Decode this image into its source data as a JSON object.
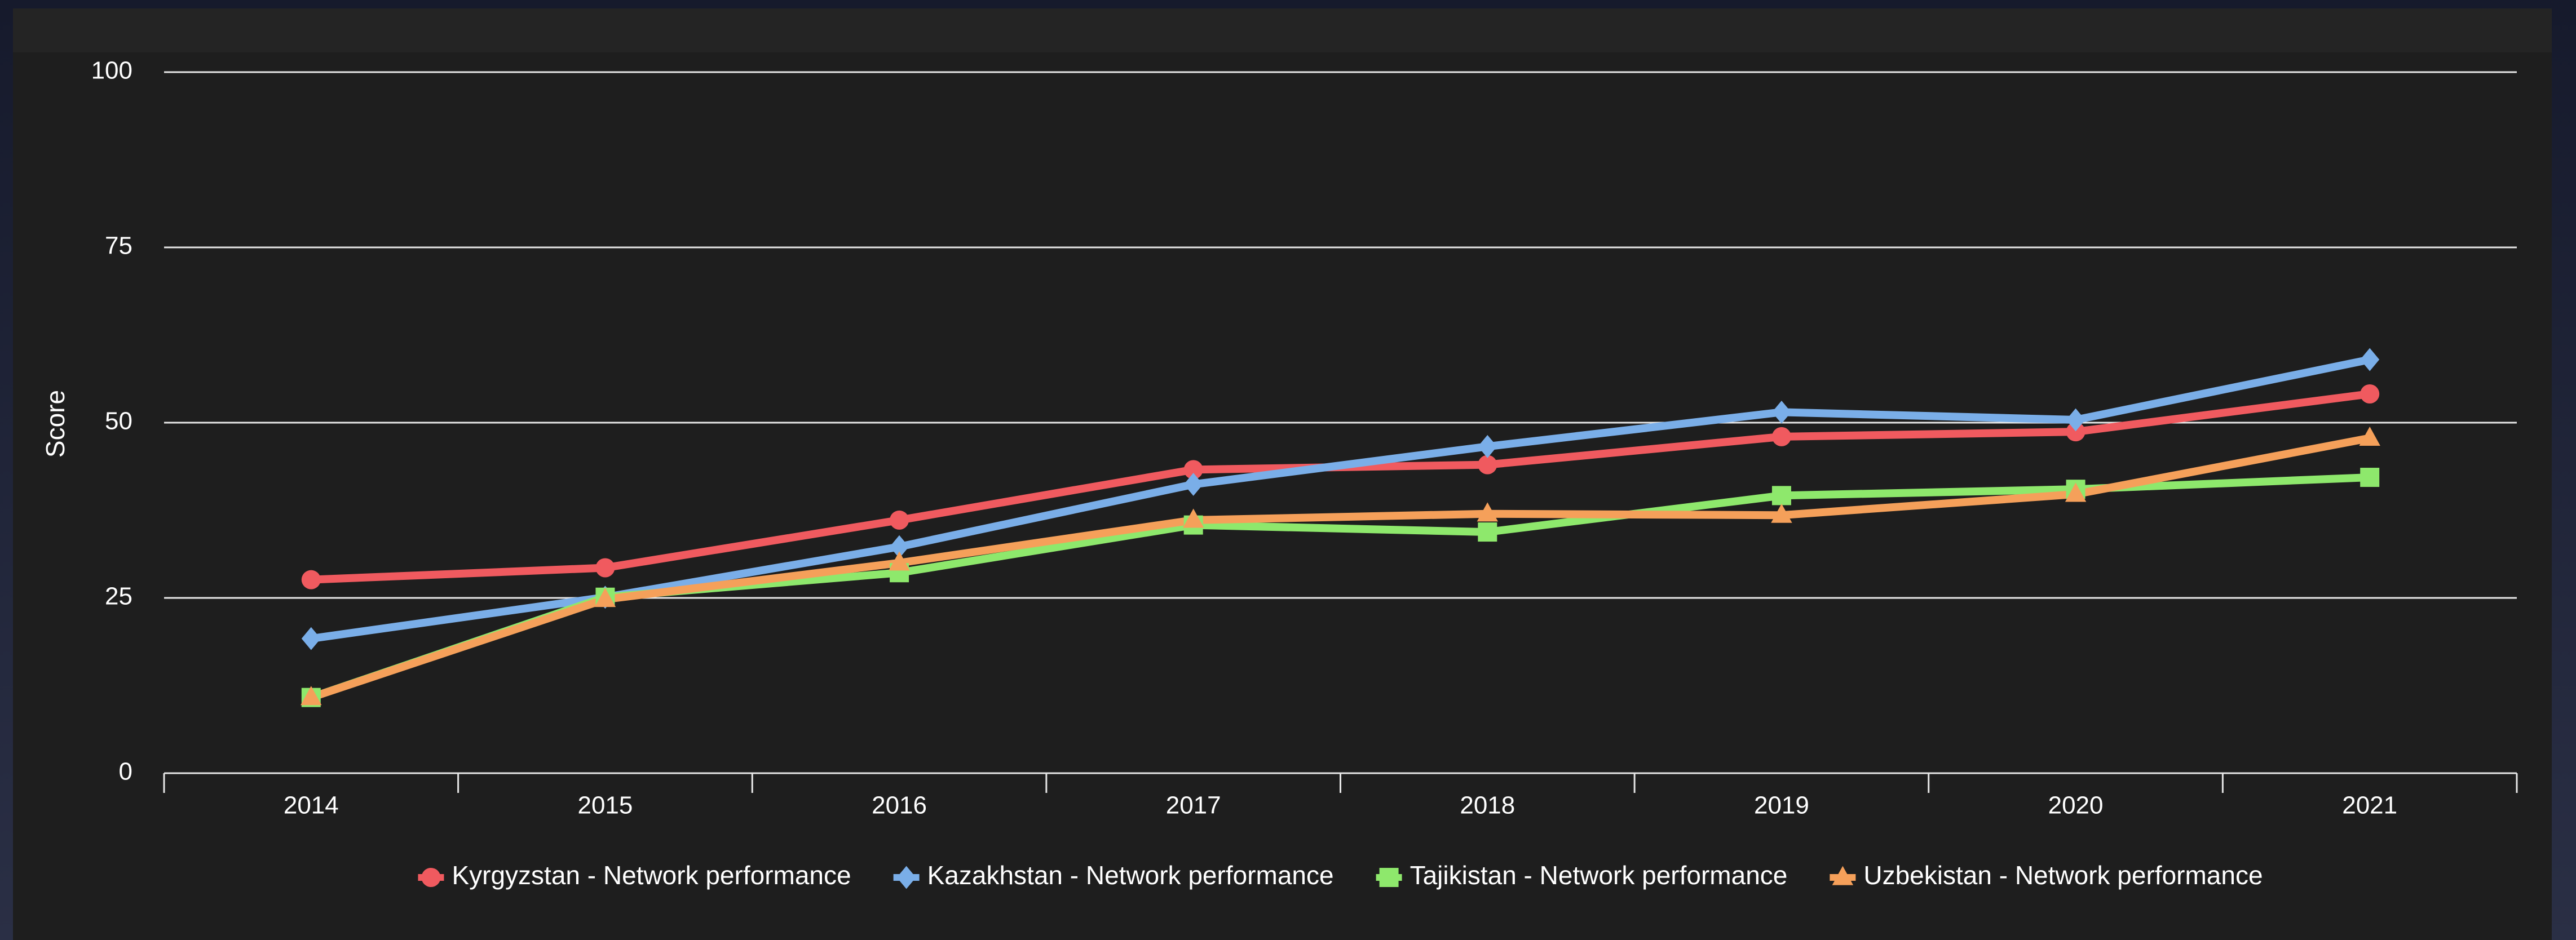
{
  "chart_data": {
    "type": "line",
    "y_label": "Score",
    "categories": [
      "2014",
      "2015",
      "2016",
      "2017",
      "2018",
      "2019",
      "2020",
      "2021"
    ],
    "ylim": [
      0,
      100
    ],
    "yticks": [
      0,
      25,
      50,
      75,
      100
    ],
    "grid": true,
    "legend": "bottom",
    "series": [
      {
        "name": "Kyrgyzstan - Network performance",
        "color": "#f05a5f",
        "marker": "circle",
        "values": [
          27.6,
          29.3,
          36.1,
          43.3,
          44.0,
          48.0,
          48.7,
          54.1
        ]
      },
      {
        "name": "Kazakhstan - Network performance",
        "color": "#7aaee8",
        "marker": "diamond",
        "values": [
          19.2,
          25.1,
          32.3,
          41.2,
          46.6,
          51.5,
          50.4,
          59.0
        ]
      },
      {
        "name": "Tajikistan - Network performance",
        "color": "#8ee86c",
        "marker": "square",
        "values": [
          10.8,
          25.1,
          28.6,
          35.4,
          34.4,
          39.6,
          40.5,
          42.2
        ]
      },
      {
        "name": "Uzbekistan - Network performance",
        "color": "#f5a05a",
        "marker": "triangle",
        "values": [
          10.8,
          24.8,
          30.0,
          36.1,
          37.0,
          36.8,
          39.8,
          47.8
        ]
      }
    ]
  }
}
